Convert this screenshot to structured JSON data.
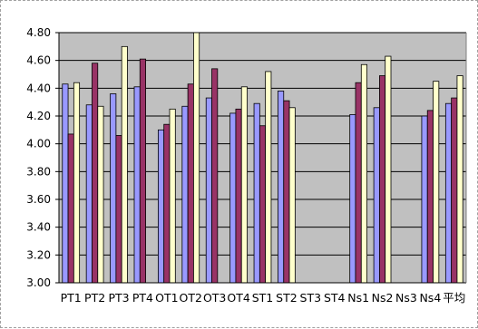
{
  "chart_data": {
    "type": "bar",
    "title": "",
    "xlabel": "",
    "ylabel": "",
    "ylim": [
      3.0,
      4.8
    ],
    "yticks": [
      "3.00",
      "3.20",
      "3.40",
      "3.60",
      "3.80",
      "4.00",
      "4.20",
      "4.40",
      "4.60",
      "4.80"
    ],
    "grid": "horizontal",
    "legend": "none",
    "plot_background": "#c0c0c0",
    "categories": [
      "PT1",
      "PT2",
      "PT3",
      "PT4",
      "OT1",
      "OT2",
      "OT3",
      "OT4",
      "ST1",
      "ST2",
      "ST3",
      "ST4",
      "Ns1",
      "Ns2",
      "Ns3",
      "Ns4",
      "平均"
    ],
    "series": [
      {
        "color": "#9999ff",
        "values": [
          4.43,
          4.28,
          4.36,
          4.41,
          4.1,
          4.27,
          4.33,
          4.22,
          4.29,
          4.38,
          null,
          null,
          4.21,
          4.26,
          null,
          4.2,
          4.29
        ]
      },
      {
        "color": "#993366",
        "values": [
          4.07,
          4.58,
          4.06,
          4.61,
          4.14,
          4.43,
          4.54,
          4.25,
          4.13,
          4.31,
          null,
          null,
          4.44,
          4.49,
          null,
          4.24,
          4.33
        ]
      },
      {
        "color": "#ffffcc",
        "values": [
          4.44,
          4.27,
          4.7,
          null,
          4.25,
          4.8,
          null,
          4.41,
          4.52,
          4.26,
          null,
          null,
          4.57,
          4.63,
          null,
          4.45,
          4.49
        ]
      }
    ]
  }
}
